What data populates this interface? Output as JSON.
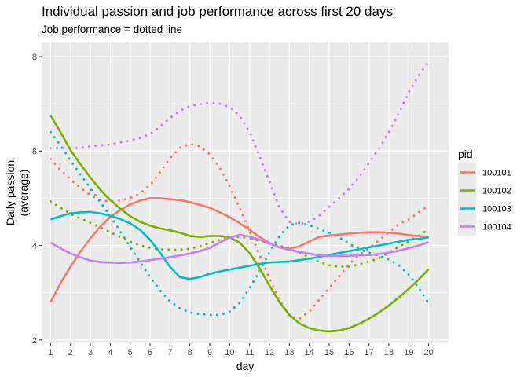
{
  "chart_data": {
    "type": "line",
    "title": "Individual passion and job performance across first 20 days",
    "subtitle": "Job performance = dotted line",
    "xlabel": "day",
    "ylabel_lines": [
      "Daily passion",
      "(average)"
    ],
    "categories": [
      "1",
      "2",
      "3",
      "4",
      "5",
      "6",
      "7",
      "8",
      "9",
      "10",
      "11",
      "12",
      "13",
      "14",
      "15",
      "16",
      "17",
      "18",
      "19",
      "20"
    ],
    "x": [
      1,
      1.5,
      2,
      2.5,
      3,
      3.5,
      4,
      4.5,
      5,
      5.5,
      6,
      6.5,
      7,
      7.5,
      8,
      8.5,
      9,
      9.5,
      10,
      10.5,
      11,
      11.5,
      12,
      12.5,
      13,
      13.5,
      14,
      14.5,
      15,
      15.5,
      16,
      16.5,
      17,
      17.5,
      18,
      18.5,
      19,
      19.5,
      20
    ],
    "xlim": [
      0.55,
      21.0
    ],
    "ylim": [
      1.93,
      8.3
    ],
    "yticks": [
      2,
      4,
      6,
      8
    ],
    "grid": true,
    "legend_title": "pid",
    "legend_position": "right",
    "series": [
      {
        "name": "100101",
        "color": "#f8766d",
        "passion": [
          2.8,
          3.2,
          3.55,
          3.87,
          4.15,
          4.4,
          4.6,
          4.75,
          4.87,
          4.95,
          5.0,
          5.0,
          4.98,
          4.96,
          4.92,
          4.86,
          4.8,
          4.7,
          4.6,
          4.47,
          4.33,
          4.18,
          4.05,
          3.96,
          3.93,
          3.98,
          4.08,
          4.18,
          4.21,
          4.23,
          4.25,
          4.27,
          4.28,
          4.28,
          4.27,
          4.25,
          4.22,
          4.2,
          4.18
        ],
        "performance": [
          5.83,
          5.6,
          5.4,
          5.22,
          5.06,
          4.96,
          4.93,
          4.95,
          5.0,
          5.1,
          5.28,
          5.55,
          5.85,
          6.07,
          6.15,
          6.1,
          5.93,
          5.65,
          5.25,
          4.8,
          4.3,
          3.8,
          3.3,
          2.85,
          2.5,
          2.45,
          2.6,
          2.85,
          3.1,
          3.35,
          3.6,
          3.8,
          3.95,
          4.1,
          4.28,
          4.45,
          4.55,
          4.7,
          4.85
        ]
      },
      {
        "name": "100102",
        "color": "#7cae00",
        "passion": [
          6.75,
          6.4,
          6.02,
          5.72,
          5.44,
          5.18,
          4.96,
          4.78,
          4.62,
          4.5,
          4.42,
          4.36,
          4.32,
          4.27,
          4.2,
          4.18,
          4.2,
          4.2,
          4.17,
          4.06,
          3.84,
          3.52,
          3.15,
          2.8,
          2.53,
          2.35,
          2.25,
          2.2,
          2.18,
          2.2,
          2.25,
          2.34,
          2.45,
          2.58,
          2.73,
          2.9,
          3.08,
          3.28,
          3.5
        ],
        "performance": [
          4.93,
          4.8,
          4.67,
          4.57,
          4.48,
          4.38,
          4.28,
          4.18,
          4.08,
          4.0,
          3.95,
          3.92,
          3.91,
          3.91,
          3.93,
          3.98,
          4.05,
          4.12,
          4.17,
          4.18,
          4.15,
          4.1,
          4.05,
          4.0,
          3.93,
          3.85,
          3.75,
          3.65,
          3.58,
          3.55,
          3.55,
          3.6,
          3.66,
          3.73,
          3.85,
          3.97,
          4.09,
          4.2,
          4.35
        ]
      },
      {
        "name": "100103",
        "color": "#00bfc4",
        "passion": [
          4.55,
          4.62,
          4.68,
          4.7,
          4.71,
          4.68,
          4.63,
          4.56,
          4.47,
          4.33,
          4.12,
          3.85,
          3.55,
          3.33,
          3.29,
          3.33,
          3.4,
          3.45,
          3.49,
          3.53,
          3.57,
          3.61,
          3.64,
          3.65,
          3.66,
          3.69,
          3.72,
          3.76,
          3.8,
          3.84,
          3.88,
          3.92,
          3.96,
          4.0,
          4.04,
          4.08,
          4.12,
          4.14,
          4.17
        ],
        "performance": [
          6.4,
          6.12,
          5.8,
          5.5,
          5.21,
          4.92,
          4.62,
          4.3,
          3.97,
          3.65,
          3.33,
          3.05,
          2.82,
          2.67,
          2.58,
          2.55,
          2.53,
          2.53,
          2.6,
          2.78,
          3.1,
          3.45,
          3.85,
          4.2,
          4.43,
          4.48,
          4.43,
          4.35,
          4.27,
          4.17,
          4.04,
          3.92,
          3.85,
          3.78,
          3.7,
          3.58,
          3.38,
          3.1,
          2.77
        ]
      },
      {
        "name": "100104",
        "color": "#c77cff",
        "passion": [
          4.06,
          3.94,
          3.83,
          3.75,
          3.68,
          3.65,
          3.64,
          3.63,
          3.64,
          3.66,
          3.69,
          3.72,
          3.75,
          3.79,
          3.83,
          3.88,
          3.95,
          4.06,
          4.17,
          4.22,
          4.19,
          4.12,
          4.04,
          3.96,
          3.91,
          3.86,
          3.83,
          3.79,
          3.78,
          3.78,
          3.78,
          3.79,
          3.8,
          3.82,
          3.85,
          3.89,
          3.94,
          4.0,
          4.07
        ],
        "performance": [
          6.06,
          6.06,
          6.06,
          6.07,
          6.1,
          6.12,
          6.14,
          6.18,
          6.22,
          6.28,
          6.36,
          6.52,
          6.7,
          6.85,
          6.95,
          6.99,
          7.02,
          7.0,
          6.93,
          6.75,
          6.4,
          5.9,
          5.35,
          4.8,
          4.5,
          4.45,
          4.5,
          4.63,
          4.82,
          5.0,
          5.2,
          5.45,
          5.75,
          6.05,
          6.4,
          6.8,
          7.25,
          7.6,
          7.9
        ]
      }
    ]
  }
}
